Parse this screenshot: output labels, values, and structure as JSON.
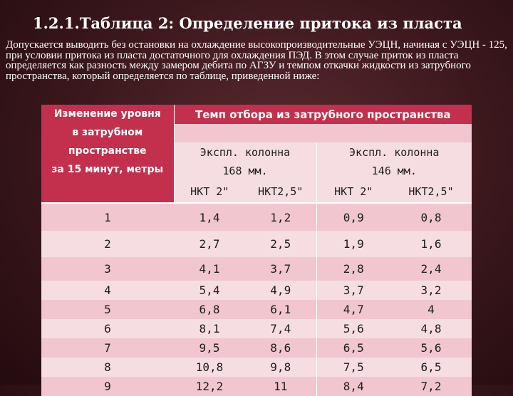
{
  "title": "1.2.1.Таблица 2: Определение притока из пласта",
  "intro": "Допускается выводить без остановки на охлаждение высокопроизводительные УЭЦН, начиная с УЭЦН - 125, при условии притока из пласта достаточного для охлаждения ПЭД. В этом случае приток из пласта определяется как разность между замером дебита по АГЗУ и темпом откачки жидкости из затрубного пространства, который определяется по таблице, приведенной ниже:",
  "table": {
    "left_header": [
      "Изменение уровня",
      "в затрубном",
      "пространстве",
      "за 15 минут, метры"
    ],
    "top_header": "Темп отбора из затрубного пространства",
    "col_groups": [
      {
        "line1": "Экспл. колонна",
        "line2": "168 мм."
      },
      {
        "line1": "Экспл. колонна",
        "line2": "146 мм."
      }
    ],
    "sub_headers": [
      "НКТ 2\"",
      "НКТ2,5\"",
      "НКТ 2\"",
      "НКТ2,5\""
    ],
    "rows": [
      {
        "level": "1",
        "values": [
          "1,4",
          "1,2",
          "0,9",
          "0,8"
        ]
      },
      {
        "level": "2",
        "values": [
          "2,7",
          "2,5",
          "1,9",
          "1,6"
        ]
      },
      {
        "level": "3",
        "values": [
          "4,1",
          "3,7",
          "2,8",
          "2,4"
        ]
      },
      {
        "level": "4",
        "values": [
          "5,4",
          "4,9",
          "3,7",
          "3,2"
        ]
      },
      {
        "level": "5",
        "values": [
          "6,8",
          "6,1",
          "4,7",
          "4"
        ]
      },
      {
        "level": "6",
        "values": [
          "8,1",
          "7,4",
          "5,6",
          "4,8"
        ]
      },
      {
        "level": "7",
        "values": [
          "9,5",
          "8,6",
          "6,5",
          "5,6"
        ]
      },
      {
        "level": "8",
        "values": [
          "10,8",
          "9,8",
          "7,5",
          "6,5"
        ]
      },
      {
        "level": "9",
        "values": [
          "12,2",
          "11",
          "8,4",
          "7,2"
        ]
      }
    ]
  }
}
